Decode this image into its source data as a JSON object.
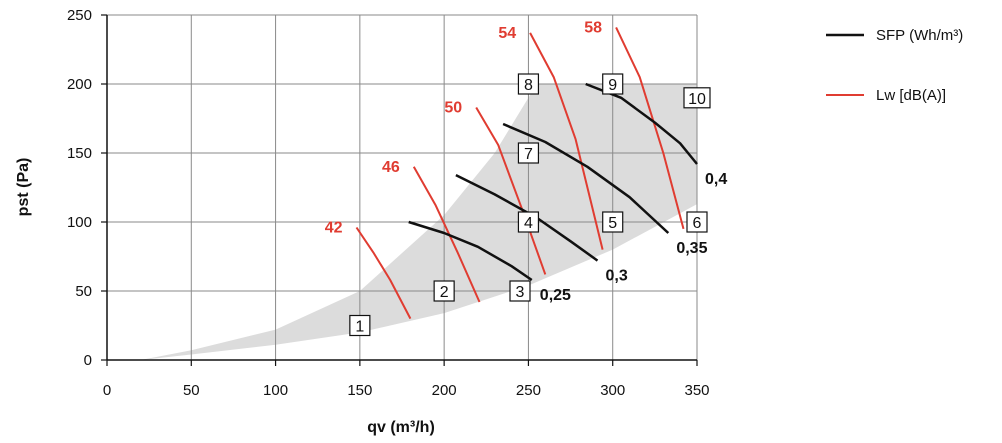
{
  "chart_data": {
    "type": "line",
    "xlabel": "qv (m³/h)",
    "ylabel": "pst (Pa)",
    "xlim": [
      0,
      350
    ],
    "ylim": [
      0,
      250
    ],
    "xticks": [
      0,
      50,
      100,
      150,
      200,
      250,
      300,
      350
    ],
    "yticks": [
      0,
      50,
      100,
      150,
      200,
      250
    ],
    "grid": true,
    "legend_position": "top-right",
    "colors": {
      "sfp": "#111111",
      "lw": "#e03c31",
      "area": "#dcdcdc",
      "grid": "#8a8a8a"
    },
    "operating_area": {
      "lower": [
        [
          20,
          0
        ],
        [
          50,
          4
        ],
        [
          100,
          11
        ],
        [
          150,
          20
        ],
        [
          200,
          34
        ],
        [
          250,
          54
        ],
        [
          300,
          80
        ],
        [
          350,
          113
        ]
      ],
      "upper": [
        [
          20,
          0
        ],
        [
          50,
          7
        ],
        [
          100,
          22
        ],
        [
          150,
          50
        ],
        [
          200,
          105
        ],
        [
          230,
          150
        ],
        [
          250,
          190
        ],
        [
          255,
          200
        ],
        [
          350,
          200
        ]
      ]
    },
    "sfp_series_name": "SFP (Wh/m³)",
    "sfp_curves": [
      {
        "label": "0,25",
        "points": [
          [
            179,
            100
          ],
          [
            200,
            92
          ],
          [
            220,
            82
          ],
          [
            240,
            68
          ],
          [
            252,
            58
          ]
        ]
      },
      {
        "label": "0,3",
        "points": [
          [
            207,
            134
          ],
          [
            230,
            120
          ],
          [
            255,
            103
          ],
          [
            275,
            86
          ],
          [
            291,
            72
          ]
        ]
      },
      {
        "label": "0,35",
        "points": [
          [
            235,
            171
          ],
          [
            260,
            158
          ],
          [
            285,
            140
          ],
          [
            310,
            118
          ],
          [
            333,
            92
          ]
        ]
      },
      {
        "label": "0,4",
        "points": [
          [
            284,
            200
          ],
          [
            305,
            190
          ],
          [
            325,
            172
          ],
          [
            340,
            157
          ],
          [
            350,
            142
          ]
        ]
      }
    ],
    "lw_series_name": "Lw [dB(A)]",
    "lw_curves": [
      {
        "label": "42",
        "points": [
          [
            148,
            96
          ],
          [
            158,
            78
          ],
          [
            168,
            58
          ],
          [
            180,
            30
          ]
        ]
      },
      {
        "label": "46",
        "points": [
          [
            182,
            140
          ],
          [
            195,
            112
          ],
          [
            208,
            78
          ],
          [
            221,
            42
          ]
        ]
      },
      {
        "label": "50",
        "points": [
          [
            219,
            183
          ],
          [
            232,
            156
          ],
          [
            246,
            110
          ],
          [
            260,
            62
          ]
        ]
      },
      {
        "label": "54",
        "points": [
          [
            251,
            237
          ],
          [
            265,
            205
          ],
          [
            278,
            160
          ],
          [
            294,
            80
          ]
        ]
      },
      {
        "label": "58",
        "points": [
          [
            302,
            241
          ],
          [
            316,
            205
          ],
          [
            330,
            150
          ],
          [
            342,
            95
          ]
        ]
      }
    ],
    "points": [
      {
        "label": "1",
        "x": 150,
        "y": 25
      },
      {
        "label": "2",
        "x": 200,
        "y": 50
      },
      {
        "label": "3",
        "x": 245,
        "y": 50
      },
      {
        "label": "4",
        "x": 250,
        "y": 100
      },
      {
        "label": "5",
        "x": 300,
        "y": 100
      },
      {
        "label": "6",
        "x": 350,
        "y": 100
      },
      {
        "label": "7",
        "x": 250,
        "y": 150
      },
      {
        "label": "8",
        "x": 250,
        "y": 200
      },
      {
        "label": "9",
        "x": 300,
        "y": 200
      },
      {
        "label": "10",
        "x": 350,
        "y": 190
      }
    ]
  }
}
